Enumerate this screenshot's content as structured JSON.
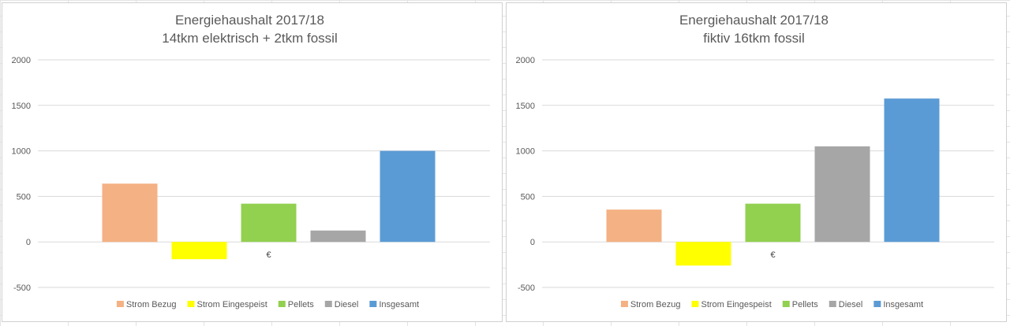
{
  "chart_data": [
    {
      "type": "bar",
      "title": "Energiehaushalt 2017/18",
      "subtitle": "14tkm elektrisch + 2tkm fossil",
      "categories": [
        "€"
      ],
      "ylim": [
        -500,
        2000
      ],
      "yticks": [
        -500,
        0,
        500,
        1000,
        1500,
        2000
      ],
      "grid": true,
      "legend_position": "bottom",
      "series": [
        {
          "name": "Strom Bezug",
          "values": [
            640
          ],
          "color": "#f4b183"
        },
        {
          "name": "Strom Eingespeist",
          "values": [
            -190
          ],
          "color": "#ffff00"
        },
        {
          "name": "Pellets",
          "values": [
            420
          ],
          "color": "#92d050"
        },
        {
          "name": "Diesel",
          "values": [
            125
          ],
          "color": "#a6a6a6"
        },
        {
          "name": "Insgesamt",
          "values": [
            1000
          ],
          "color": "#5b9bd5"
        }
      ]
    },
    {
      "type": "bar",
      "title": "Energiehaushalt 2017/18",
      "subtitle": "fiktiv 16tkm fossil",
      "categories": [
        "€"
      ],
      "ylim": [
        -500,
        2000
      ],
      "yticks": [
        -500,
        0,
        500,
        1000,
        1500,
        2000
      ],
      "grid": true,
      "legend_position": "bottom",
      "series": [
        {
          "name": "Strom Bezug",
          "values": [
            355
          ],
          "color": "#f4b183"
        },
        {
          "name": "Strom Eingespeist",
          "values": [
            -260
          ],
          "color": "#ffff00"
        },
        {
          "name": "Pellets",
          "values": [
            420
          ],
          "color": "#92d050"
        },
        {
          "name": "Diesel",
          "values": [
            1050
          ],
          "color": "#a6a6a6"
        },
        {
          "name": "Insgesamt",
          "values": [
            1575
          ],
          "color": "#5b9bd5"
        }
      ]
    }
  ]
}
